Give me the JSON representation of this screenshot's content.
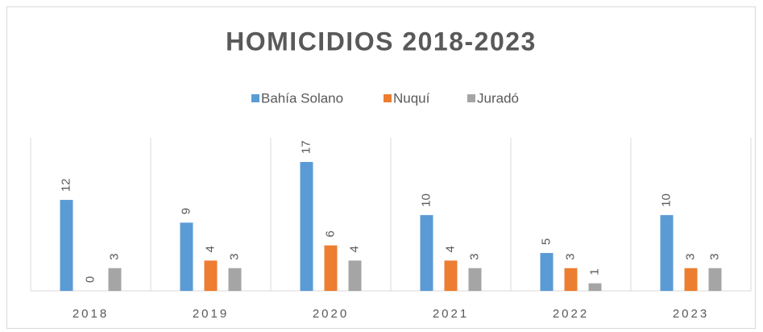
{
  "chart_data": {
    "type": "bar",
    "title": "HOMICIDIOS 2018-2023",
    "categories": [
      "2018",
      "2019",
      "2020",
      "2021",
      "2022",
      "2023"
    ],
    "series": [
      {
        "name": "Bahía Solano",
        "color": "#5b9bd5",
        "values": [
          12,
          9,
          17,
          10,
          5,
          10
        ]
      },
      {
        "name": "Nuquí",
        "color": "#ed7d31",
        "values": [
          0,
          4,
          6,
          4,
          3,
          3
        ]
      },
      {
        "name": "Juradó",
        "color": "#a5a5a5",
        "values": [
          3,
          3,
          4,
          3,
          1,
          3
        ]
      }
    ],
    "legend": "top"
  }
}
